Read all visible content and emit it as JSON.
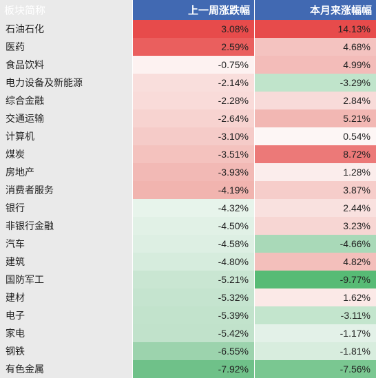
{
  "table": {
    "headers": [
      "板块简称",
      "上一周涨跌幅",
      "本月来涨幅幅"
    ],
    "header_bg": "#4169b2",
    "header_color": "#ffffff",
    "name_col_bg": "#eaeaea",
    "rows": [
      {
        "name": "石油石化",
        "week": "3.08%",
        "week_bg": "#e74b4b",
        "month": "14.13%",
        "month_bg": "#e74b4b"
      },
      {
        "name": "医药",
        "week": "2.59%",
        "week_bg": "#ea5f5e",
        "month": "4.68%",
        "month_bg": "#f4c3c0"
      },
      {
        "name": "食品饮料",
        "week": "-0.75%",
        "week_bg": "#fdf2f1",
        "month": "4.99%",
        "month_bg": "#f3bcb9"
      },
      {
        "name": "电力设备及新能源",
        "week": "-2.14%",
        "week_bg": "#f9dedc",
        "month": "-3.29%",
        "month_bg": "#c0e4cb"
      },
      {
        "name": "综合金融",
        "week": "-2.28%",
        "week_bg": "#f9dbd9",
        "month": "2.84%",
        "month_bg": "#f8dbd9"
      },
      {
        "name": "交通运输",
        "week": "-2.64%",
        "week_bg": "#f7d3d0",
        "month": "5.21%",
        "month_bg": "#f2b7b3"
      },
      {
        "name": "计算机",
        "week": "-3.10%",
        "week_bg": "#f5cbc8",
        "month": "0.54%",
        "month_bg": "#fdf6f5"
      },
      {
        "name": "煤炭",
        "week": "-3.51%",
        "week_bg": "#f4c2be",
        "month": "8.72%",
        "month_bg": "#ec7978"
      },
      {
        "name": "房地产",
        "week": "-3.93%",
        "week_bg": "#f2b9b5",
        "month": "1.28%",
        "month_bg": "#fbedec"
      },
      {
        "name": "消费者服务",
        "week": "-4.19%",
        "week_bg": "#f1b4af",
        "month": "3.87%",
        "month_bg": "#f6cdca"
      },
      {
        "name": "银行",
        "week": "-4.32%",
        "week_bg": "#e7f4eb",
        "month": "2.44%",
        "month_bg": "#f9e1df"
      },
      {
        "name": "非银行金融",
        "week": "-4.50%",
        "week_bg": "#e1f1e6",
        "month": "3.23%",
        "month_bg": "#f7d6d3"
      },
      {
        "name": "汽车",
        "week": "-4.58%",
        "week_bg": "#ddefe3",
        "month": "-4.66%",
        "month_bg": "#a9d9b8"
      },
      {
        "name": "建筑",
        "week": "-4.80%",
        "week_bg": "#d6ecdd",
        "month": "4.82%",
        "month_bg": "#f3bfbb"
      },
      {
        "name": "国防军工",
        "week": "-5.21%",
        "week_bg": "#c9e6d2",
        "month": "-9.77%",
        "month_bg": "#57bb75"
      },
      {
        "name": "建材",
        "week": "-5.32%",
        "week_bg": "#c5e4cf",
        "month": "1.62%",
        "month_bg": "#fbe9e7"
      },
      {
        "name": "电子",
        "week": "-5.39%",
        "week_bg": "#c2e3cc",
        "month": "-3.11%",
        "month_bg": "#c3e5cd"
      },
      {
        "name": "家电",
        "week": "-5.42%",
        "week_bg": "#c1e2cb",
        "month": "-1.17%",
        "month_bg": "#e3f1e8"
      },
      {
        "name": "钢铁",
        "week": "-6.55%",
        "week_bg": "#9cd3ad",
        "month": "-1.81%",
        "month_bg": "#d8edde"
      },
      {
        "name": "有色金属",
        "week": "-7.92%",
        "week_bg": "#6fc189",
        "month": "-7.56%",
        "month_bg": "#7ac791"
      }
    ]
  }
}
